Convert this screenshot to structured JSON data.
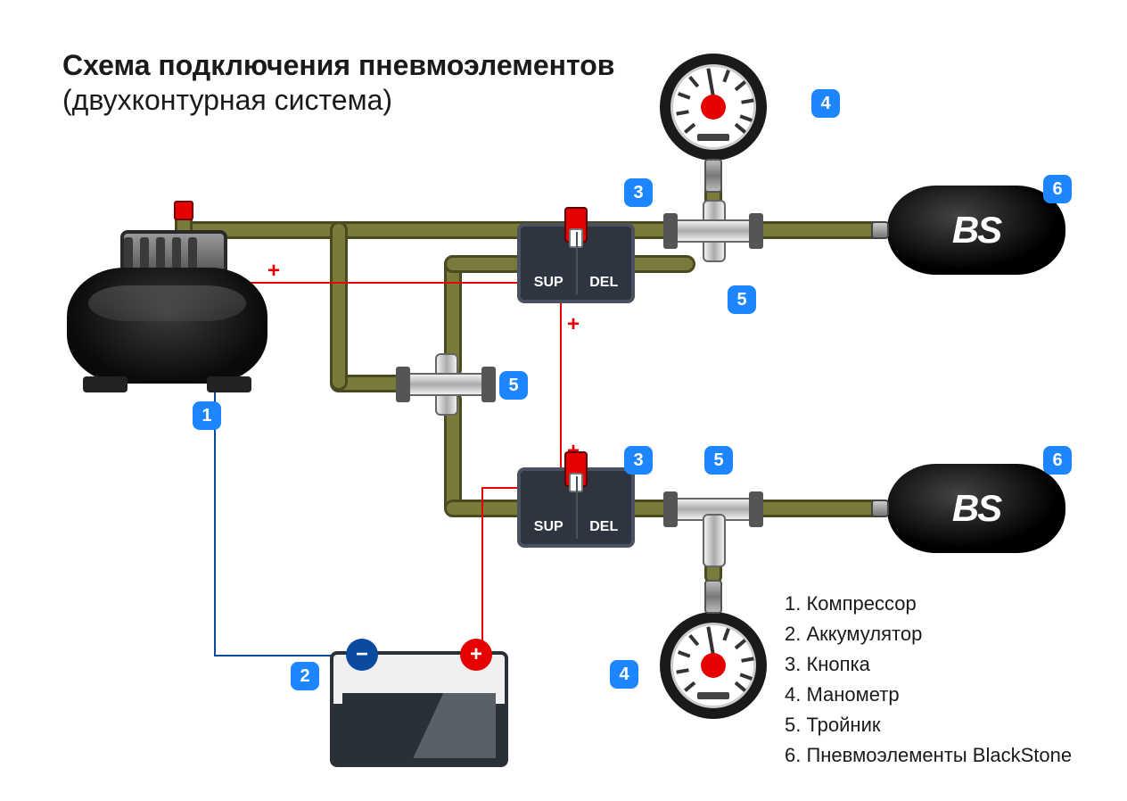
{
  "title": "Схема подключения пневмоэлементов",
  "subtitle": "(двухконтурная система)",
  "colors": {
    "badge_bg": "#1d86ff",
    "badge_fg": "#ffffff",
    "pipe_fill": "#7a7a3a",
    "pipe_border": "#4a4a20",
    "wire_pos": "#e60000",
    "wire_neg": "#0a4aa0",
    "box_bg": "#2e3540",
    "box_border": "#4a5260",
    "airbag_text": "#ffffff",
    "gauge_dot": "#e60000"
  },
  "buttons": {
    "left_label": "SUP",
    "right_label": "DEL"
  },
  "airbag_label": "BS",
  "battery": {
    "neg": "−",
    "pos": "+"
  },
  "signs": {
    "plus": "+",
    "minus": "−"
  },
  "legend": [
    "1. Компрессор",
    "2. Аккумулятор",
    "3. Кнопка",
    "4. Манометр",
    "5. Тройник",
    "6. Пневмоэлементы BlackStone"
  ],
  "badges": {
    "compressor": "1",
    "battery": "2",
    "button_top": "3",
    "button_bottom": "3",
    "gauge_top": "4",
    "gauge_bottom": "4",
    "tee_mid": "5",
    "tee_top": "5",
    "tee_bottom": "5",
    "airbag_top": "6",
    "airbag_bottom": "6"
  },
  "gauge_ticks_deg": [
    -130,
    -100,
    -70,
    -40,
    -10,
    20,
    50,
    80,
    110,
    130
  ]
}
